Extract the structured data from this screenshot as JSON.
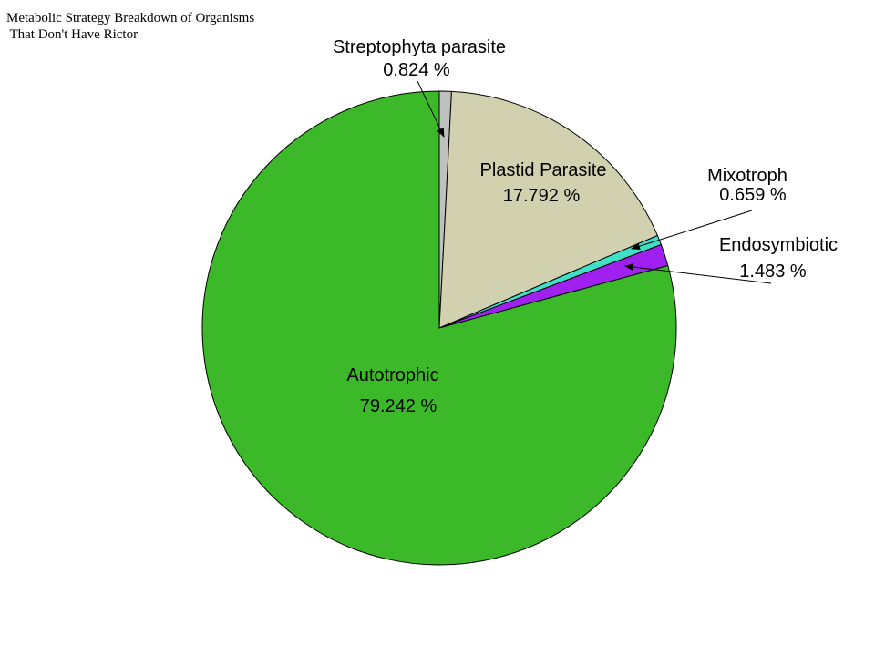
{
  "chart_data": {
    "type": "pie",
    "title_lines": [
      "Metabolic Strategy Breakdown of Organisms",
      " That Don't Have Rictor"
    ],
    "slices": [
      {
        "name": "Streptophyta parasite",
        "value": 0.824,
        "value_label": "0.824 %",
        "color": "#c0c0c0"
      },
      {
        "name": "Plastid Parasite",
        "value": 17.792,
        "value_label": "17.792 %",
        "color": "#d1d1b0"
      },
      {
        "name": "Mixotroph",
        "value": 0.659,
        "value_label": "0.659 %",
        "color": "#40e0c8"
      },
      {
        "name": "Endosymbiotic",
        "value": 1.483,
        "value_label": "1.483 %",
        "color": "#a020f0"
      },
      {
        "name": "Autotrophic",
        "value": 79.242,
        "value_label": "79.242 %",
        "color": "#3cb928"
      }
    ],
    "start_angle": "top",
    "direction": "clockwise",
    "legend": "none"
  }
}
